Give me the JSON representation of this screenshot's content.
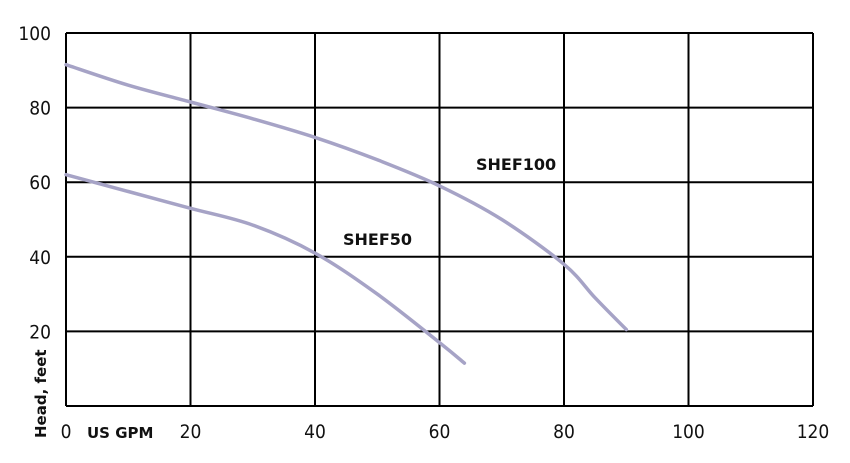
{
  "chart_data": {
    "type": "line",
    "xlabel": "US GPM",
    "ylabel": "Head, feet",
    "xlim": [
      0,
      120
    ],
    "ylim": [
      0,
      100
    ],
    "x_ticks": [
      0,
      20,
      40,
      60,
      80,
      100,
      120
    ],
    "y_ticks": [
      0,
      20,
      40,
      60,
      80,
      100
    ],
    "x_tick_labels": [
      "0",
      "20",
      "40",
      "60",
      "80",
      "100",
      "120"
    ],
    "y_tick_labels": [
      "",
      "20",
      "40",
      "60",
      "80",
      "100"
    ],
    "grid": true,
    "series_color": "#a6a3c6",
    "series": [
      {
        "name": "SHEF100",
        "points": [
          [
            0,
            91.5
          ],
          [
            10,
            86
          ],
          [
            20,
            81.5
          ],
          [
            30,
            77
          ],
          [
            40,
            72
          ],
          [
            50,
            66
          ],
          [
            60,
            59
          ],
          [
            70,
            50
          ],
          [
            80,
            38
          ],
          [
            85,
            29
          ],
          [
            90,
            20.5
          ]
        ]
      },
      {
        "name": "SHEF50",
        "points": [
          [
            0,
            62
          ],
          [
            10,
            57.5
          ],
          [
            20,
            53
          ],
          [
            30,
            48.5
          ],
          [
            40,
            41
          ],
          [
            50,
            30
          ],
          [
            60,
            17
          ],
          [
            64,
            11.5
          ]
        ]
      }
    ]
  }
}
